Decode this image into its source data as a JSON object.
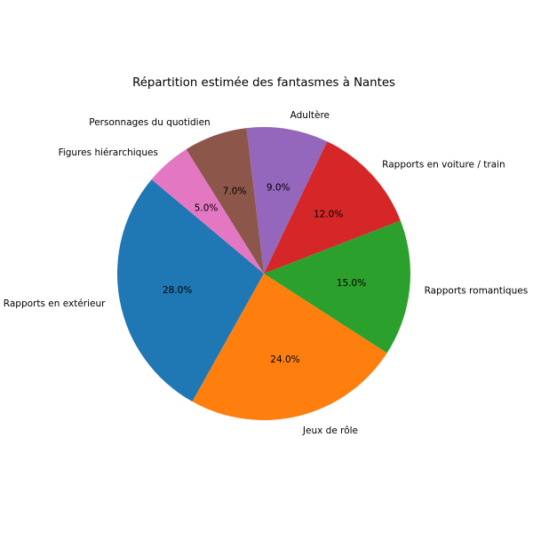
{
  "chart_data": {
    "type": "pie",
    "title": "Répartition estimée des fantasmes à Nantes",
    "categories": [
      "Rapports en extérieur",
      "Jeux de rôle",
      "Rapports romantiques",
      "Rapports en voiture / train",
      "Adultère",
      "Personnages du quotidien",
      "Figures hiérarchiques"
    ],
    "values": [
      28,
      24,
      15,
      12,
      9,
      7,
      5
    ],
    "percent_labels": [
      "28.0%",
      "24.0%",
      "15.0%",
      "12.0%",
      "9.0%",
      "7.0%",
      "5.0%"
    ],
    "colors": [
      "#1f77b4",
      "#ff7f0e",
      "#2ca02c",
      "#d62728",
      "#9467bd",
      "#8c564b",
      "#e377c2"
    ],
    "start_angle": 140,
    "direction": "counterclockwise",
    "legend": "none",
    "xlabel": "",
    "ylabel": ""
  }
}
